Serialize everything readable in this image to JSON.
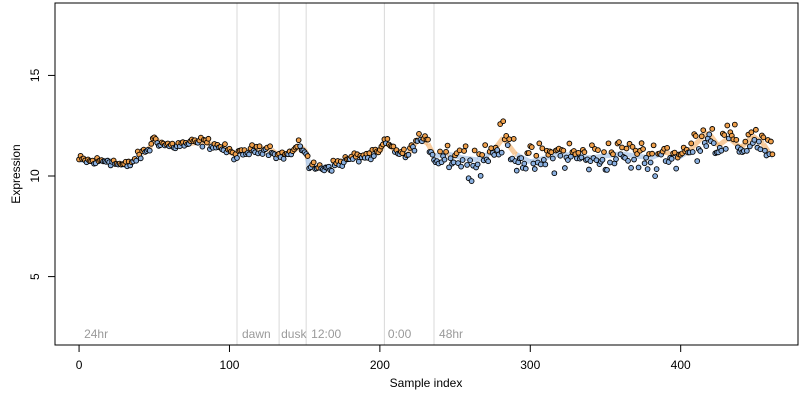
{
  "chart_data": {
    "type": "scatter",
    "title": "",
    "xlabel": "Sample index",
    "ylabel": "Expression",
    "xlim": [
      -16,
      478
    ],
    "ylim": [
      1.6,
      18.6
    ],
    "xticks": [
      0,
      100,
      200,
      300,
      400
    ],
    "yticks": [
      5,
      10,
      15
    ],
    "grid": false,
    "phase_boundaries": [
      105,
      133,
      151,
      203,
      236
    ],
    "phase_labels": [
      {
        "text": "24hr",
        "x": 2
      },
      {
        "text": "dawn",
        "x": 107
      },
      {
        "text": "dusk",
        "x": 133
      },
      {
        "text": "12:00",
        "x": 153
      },
      {
        "text": "0:00",
        "x": 204
      },
      {
        "text": "48hr",
        "x": 238
      }
    ],
    "colors": {
      "orange": "#f0a04b",
      "blue": "#8ab0e0",
      "black_outline": "#000000",
      "boundary": "#d9d9d9"
    },
    "anchors": [
      [
        0,
        10.8
      ],
      [
        10,
        10.7
      ],
      [
        20,
        10.8
      ],
      [
        25,
        10.6
      ],
      [
        32,
        10.5
      ],
      [
        40,
        11.0
      ],
      [
        47,
        11.4
      ],
      [
        50,
        11.9
      ],
      [
        55,
        11.6
      ],
      [
        62,
        11.5
      ],
      [
        72,
        11.6
      ],
      [
        82,
        11.7
      ],
      [
        92,
        11.5
      ],
      [
        100,
        11.2
      ],
      [
        105,
        11.0
      ],
      [
        112,
        11.2
      ],
      [
        120,
        11.4
      ],
      [
        128,
        11.3
      ],
      [
        133,
        11.0
      ],
      [
        140,
        11.1
      ],
      [
        147,
        11.5
      ],
      [
        151,
        11.2
      ],
      [
        153,
        10.5
      ],
      [
        160,
        10.4
      ],
      [
        168,
        10.5
      ],
      [
        178,
        10.8
      ],
      [
        188,
        11.0
      ],
      [
        195,
        11.0
      ],
      [
        200,
        11.2
      ],
      [
        203,
        11.7
      ],
      [
        210,
        11.3
      ],
      [
        218,
        11.0
      ],
      [
        226,
        11.9
      ],
      [
        232,
        11.6
      ],
      [
        236,
        11.0
      ],
      [
        245,
        11.1
      ],
      [
        255,
        10.9
      ],
      [
        265,
        10.8
      ],
      [
        275,
        11.2
      ],
      [
        282,
        11.9
      ],
      [
        290,
        11.1
      ],
      [
        300,
        10.7
      ],
      [
        310,
        10.9
      ],
      [
        320,
        11.1
      ],
      [
        330,
        11.0
      ],
      [
        340,
        10.9
      ],
      [
        350,
        11.0
      ],
      [
        360,
        11.1
      ],
      [
        370,
        11.0
      ],
      [
        380,
        10.9
      ],
      [
        390,
        11.2
      ],
      [
        398,
        10.9
      ],
      [
        405,
        11.2
      ],
      [
        410,
        11.6
      ],
      [
        418,
        12.2
      ],
      [
        425,
        11.5
      ],
      [
        432,
        11.9
      ],
      [
        440,
        11.4
      ],
      [
        448,
        12.0
      ],
      [
        455,
        11.6
      ],
      [
        460,
        11.0
      ]
    ],
    "n_points": 462
  }
}
